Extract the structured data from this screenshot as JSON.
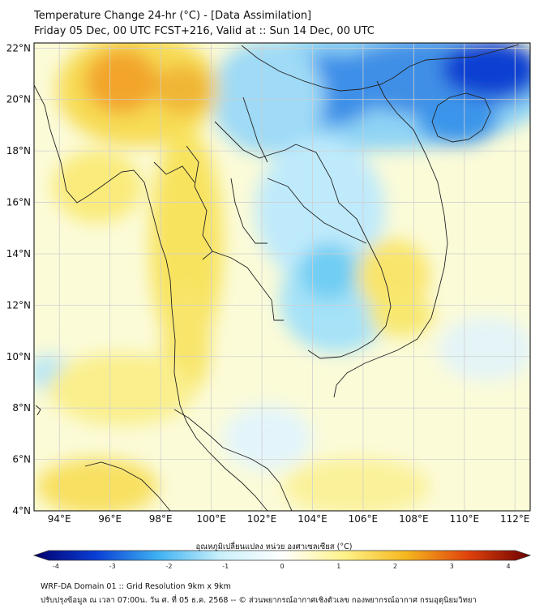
{
  "header": {
    "title_line1": "Temperature Change 24-hr (°C) - [Data Assimilation]",
    "title_line2": "Friday 05 Dec, 00 UTC FCST+216, Valid at :: Sun 14 Dec, 00 UTC"
  },
  "map": {
    "lat_ticks": [
      "22°N",
      "20°N",
      "18°N",
      "16°N",
      "14°N",
      "12°N",
      "10°N",
      "8°N",
      "6°N",
      "4°N"
    ],
    "lat_values": [
      22,
      20,
      18,
      16,
      14,
      12,
      10,
      8,
      6,
      4
    ],
    "lon_ticks": [
      "94°E",
      "96°E",
      "98°E",
      "100°E",
      "102°E",
      "104°E",
      "106°E",
      "108°E",
      "110°E",
      "112°E"
    ],
    "lon_values": [
      94,
      96,
      98,
      100,
      102,
      104,
      106,
      108,
      110,
      112
    ],
    "lat_range": [
      4,
      22.2
    ],
    "lon_range": [
      93,
      112.6
    ]
  },
  "colorbar": {
    "label": "อุณหภูมิเปลี่ยนแปลง หน่วย องศาเซลเซียส (°C)",
    "ticks": [
      "-4",
      "-3",
      "-2",
      "-1",
      "0",
      "1",
      "2",
      "3",
      "4"
    ],
    "tick_values": [
      -4,
      -3,
      -2,
      -1,
      0,
      1,
      2,
      3,
      4
    ],
    "stops": [
      "#02006e",
      "#0a3ed6",
      "#3fb2f2",
      "#c9f0fb",
      "#ffffff",
      "#fff28a",
      "#f5b71e",
      "#e0420c",
      "#6e0000"
    ]
  },
  "footer": {
    "line1": "WRF-DA Domain 01 :: Grid Resolution 9km x 9km",
    "line2": "ปรับปรุงข้อมูล ณ เวลา 07:00น. วัน ศ. ที่ 05 ธ.ค. 2568 -- © ส่วนพยากรณ์อากาศเชิงตัวเลข กองพยากรณ์อากาศ กรมอุตุนิยมวิทยา"
  }
}
